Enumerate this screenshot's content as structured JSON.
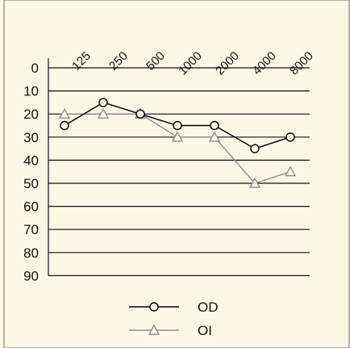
{
  "chart_data": {
    "type": "line",
    "x_tick_labels": [
      "125",
      "250",
      "500",
      "1000",
      "2000",
      "4000",
      "8000"
    ],
    "y_tick_labels": [
      "0",
      "10",
      "20",
      "30",
      "40",
      "50",
      "60",
      "70",
      "80",
      "90"
    ],
    "ylim": [
      0,
      90
    ],
    "y_inverted": true,
    "grid": "horizontal",
    "legend_position": "bottom",
    "series": [
      {
        "name": "OD",
        "marker": "circle",
        "color": "#000000",
        "x": [
          125,
          250,
          500,
          1000,
          2000,
          4000,
          8000
        ],
        "values": [
          25,
          15,
          20,
          25,
          25,
          35,
          30
        ]
      },
      {
        "name": "OI",
        "marker": "triangle",
        "color": "#8c8c8c",
        "x": [
          125,
          250,
          500,
          1000,
          2000,
          4000,
          8000
        ],
        "values": [
          20,
          20,
          20,
          30,
          30,
          50,
          45
        ]
      }
    ]
  }
}
